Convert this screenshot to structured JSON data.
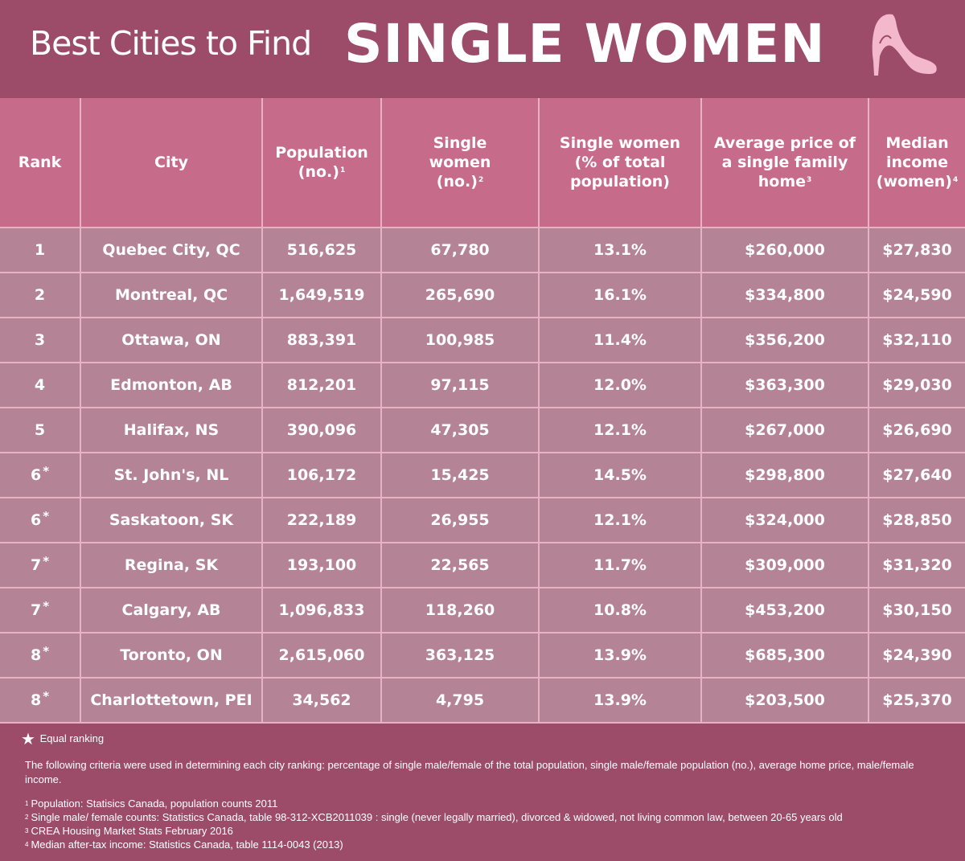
{
  "title": {
    "prefix": "Best Cities to Find",
    "emphasis": "SINGLE WOMEN",
    "icon": "high-heel-shoe-icon"
  },
  "colors": {
    "banner": "#9c4b68",
    "header_row": "#c66b8a",
    "data_row": "#b48496",
    "grid_lines": "#e7b3c3",
    "shoe": "#f4b8cd"
  },
  "table": {
    "headers": [
      {
        "lines": [
          "Rank"
        ],
        "note": ""
      },
      {
        "lines": [
          "City"
        ],
        "note": ""
      },
      {
        "lines": [
          "Population",
          "(no.)"
        ],
        "note": "1"
      },
      {
        "lines": [
          "Single",
          "women",
          "(no.)"
        ],
        "note": "2"
      },
      {
        "lines": [
          "Single women",
          "(% of total",
          "population)"
        ],
        "note": ""
      },
      {
        "lines": [
          "Average price of",
          "a single family",
          "home"
        ],
        "note": "3"
      },
      {
        "lines": [
          "Median",
          "income",
          "(women)"
        ],
        "note": "4"
      }
    ],
    "rows": [
      {
        "rank": "1",
        "rank_mark": "",
        "city": "Quebec City, QC",
        "population": "516,625",
        "single_women": "67,780",
        "percent": "13.1%",
        "home_price": "$260,000",
        "income": "$27,830"
      },
      {
        "rank": "2",
        "rank_mark": "",
        "city": "Montreal, QC",
        "population": "1,649,519",
        "single_women": "265,690",
        "percent": "16.1%",
        "home_price": "$334,800",
        "income": "$24,590"
      },
      {
        "rank": "3",
        "rank_mark": "",
        "city": "Ottawa, ON",
        "population": "883,391",
        "single_women": "100,985",
        "percent": "11.4%",
        "home_price": "$356,200",
        "income": "$32,110"
      },
      {
        "rank": "4",
        "rank_mark": "",
        "city": "Edmonton, AB",
        "population": "812,201",
        "single_women": "97,115",
        "percent": "12.0%",
        "home_price": "$363,300",
        "income": "$29,030"
      },
      {
        "rank": "5",
        "rank_mark": "",
        "city": "Halifax, NS",
        "population": "390,096",
        "single_women": "47,305",
        "percent": "12.1%",
        "home_price": "$267,000",
        "income": "$26,690"
      },
      {
        "rank": "6",
        "rank_mark": "*",
        "city": "St. John's, NL",
        "population": "106,172",
        "single_women": "15,425",
        "percent": "14.5%",
        "home_price": "$298,800",
        "income": "$27,640"
      },
      {
        "rank": "6",
        "rank_mark": "*",
        "city": "Saskatoon, SK",
        "population": "222,189",
        "single_women": "26,955",
        "percent": "12.1%",
        "home_price": "$324,000",
        "income": "$28,850"
      },
      {
        "rank": "7",
        "rank_mark": "*",
        "city": "Regina, SK",
        "population": "193,100",
        "single_women": "22,565",
        "percent": "11.7%",
        "home_price": "$309,000",
        "income": "$31,320"
      },
      {
        "rank": "7",
        "rank_mark": "*",
        "city": "Calgary, AB",
        "population": "1,096,833",
        "single_women": "118,260",
        "percent": "10.8%",
        "home_price": "$453,200",
        "income": "$30,150"
      },
      {
        "rank": "8",
        "rank_mark": "*",
        "city": "Toronto, ON",
        "population": "2,615,060",
        "single_women": "363,125",
        "percent": "13.9%",
        "home_price": "$685,300",
        "income": "$24,390"
      },
      {
        "rank": "8",
        "rank_mark": "*",
        "city": "Charlottetown, PEI",
        "population": "34,562",
        "single_women": "4,795",
        "percent": "13.9%",
        "home_price": "$203,500",
        "income": "$25,370"
      }
    ]
  },
  "notes": {
    "legend_symbol": "★",
    "legend_text": "Equal ranking",
    "criteria": "The following criteria were used in determining each city ranking: percentage of single male/female of the total population, single male/female population (no.), average home price, male/female income.",
    "references": [
      {
        "num": "1",
        "text": "Population: Statisics Canada, population counts 2011"
      },
      {
        "num": "2",
        "text": "Single male/ female counts: Statistics Canada,  table 98-312-XCB2011039 : single (never legally married), divorced & widowed, not living common law, between 20-65 years old"
      },
      {
        "num": "3",
        "text": "CREA Housing Market Stats February 2016"
      },
      {
        "num": "4",
        "text": "Median after-tax income: Statistics Canada, table 1114-0043 (2013)"
      }
    ]
  }
}
